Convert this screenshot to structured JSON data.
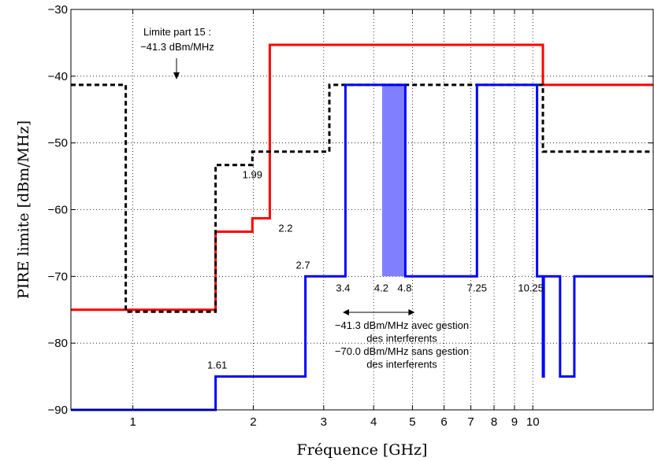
{
  "chart_data": {
    "type": "line",
    "xlabel": "Fréquence [GHz]",
    "ylabel": "PIRE limite [dBm/MHz]",
    "x_scale": "log",
    "xlim": [
      0.7,
      20
    ],
    "ylim": [
      -90,
      -30
    ],
    "xticks": [
      1,
      2,
      3,
      4,
      5,
      6,
      7,
      8,
      9,
      10
    ],
    "yticks": [
      -90,
      -80,
      -70,
      -60,
      -50,
      -40,
      -30
    ],
    "ytick_labels": [
      "−90",
      "−80",
      "−70",
      "−60",
      "−50",
      "−40",
      "−30"
    ],
    "grid": "dotted, major",
    "series": [
      {
        "color": "#ff0000",
        "style": "solid",
        "points": [
          [
            0.7,
            -75
          ],
          [
            1.61,
            -75
          ],
          [
            1.61,
            -63.3
          ],
          [
            1.99,
            -63.3
          ],
          [
            1.99,
            -61.3
          ],
          [
            2.2,
            -61.3
          ],
          [
            2.2,
            -35.3
          ],
          [
            10.6,
            -35.3
          ],
          [
            10.6,
            -41.3
          ],
          [
            20,
            -41.3
          ]
        ]
      },
      {
        "color": "#000000",
        "style": "dashed",
        "points": [
          [
            0.7,
            -41.3
          ],
          [
            0.96,
            -41.3
          ],
          [
            0.96,
            -75.3
          ],
          [
            1.61,
            -75.3
          ],
          [
            1.61,
            -53.3
          ],
          [
            1.99,
            -53.3
          ],
          [
            1.99,
            -51.3
          ],
          [
            3.1,
            -51.3
          ],
          [
            3.1,
            -41.3
          ],
          [
            10.6,
            -41.3
          ],
          [
            10.6,
            -51.3
          ],
          [
            20,
            -51.3
          ]
        ]
      },
      {
        "color": "#0000ff",
        "style": "solid",
        "points": [
          [
            0.7,
            -90
          ],
          [
            1.61,
            -90
          ],
          [
            1.61,
            -85
          ],
          [
            2.7,
            -85
          ],
          [
            2.7,
            -70
          ],
          [
            3.4,
            -70
          ],
          [
            3.4,
            -41.3
          ],
          [
            4.8,
            -41.3
          ],
          [
            4.8,
            -70
          ],
          [
            7.25,
            -70
          ],
          [
            7.25,
            -41.3
          ],
          [
            10.25,
            -41.3
          ],
          [
            10.25,
            -70
          ],
          [
            10.6,
            -70
          ],
          [
            10.6,
            -85
          ],
          [
            10.65,
            -85
          ],
          [
            10.65,
            -70
          ],
          [
            11.7,
            -70
          ],
          [
            11.7,
            -85
          ],
          [
            12.7,
            -85
          ],
          [
            12.7,
            -70
          ],
          [
            20,
            -70
          ]
        ]
      }
    ],
    "shaded_band": {
      "x": [
        4.2,
        4.8
      ],
      "y": [
        -70,
        -41.3
      ],
      "color": "#8080ff"
    },
    "annotations": [
      {
        "text": "1.61",
        "x": 1.61,
        "y": -85
      },
      {
        "text": "1.99",
        "x": 1.99,
        "y": -53.3
      },
      {
        "text": "2.2",
        "x": 2.2,
        "y": -61.3
      },
      {
        "text": "2.7",
        "x": 2.7,
        "y": -70
      },
      {
        "text": "3.4",
        "x": 3.4,
        "y": -70
      },
      {
        "text": "4.2",
        "x": 4.2,
        "y": -70
      },
      {
        "text": "4.8",
        "x": 4.8,
        "y": -70
      },
      {
        "text": "7.25",
        "x": 7.25,
        "y": -70
      },
      {
        "text": "10.25",
        "x": 10.25,
        "y": -70
      }
    ],
    "limit_note": [
      "Limite part 15 :",
      "−41.3 dBm/MHz"
    ],
    "band_note": [
      "−41.3 dBm/MHz avec gestion",
      "des interferents",
      "−70.0 dBm/MHz sans gestion",
      "des interferents"
    ]
  }
}
